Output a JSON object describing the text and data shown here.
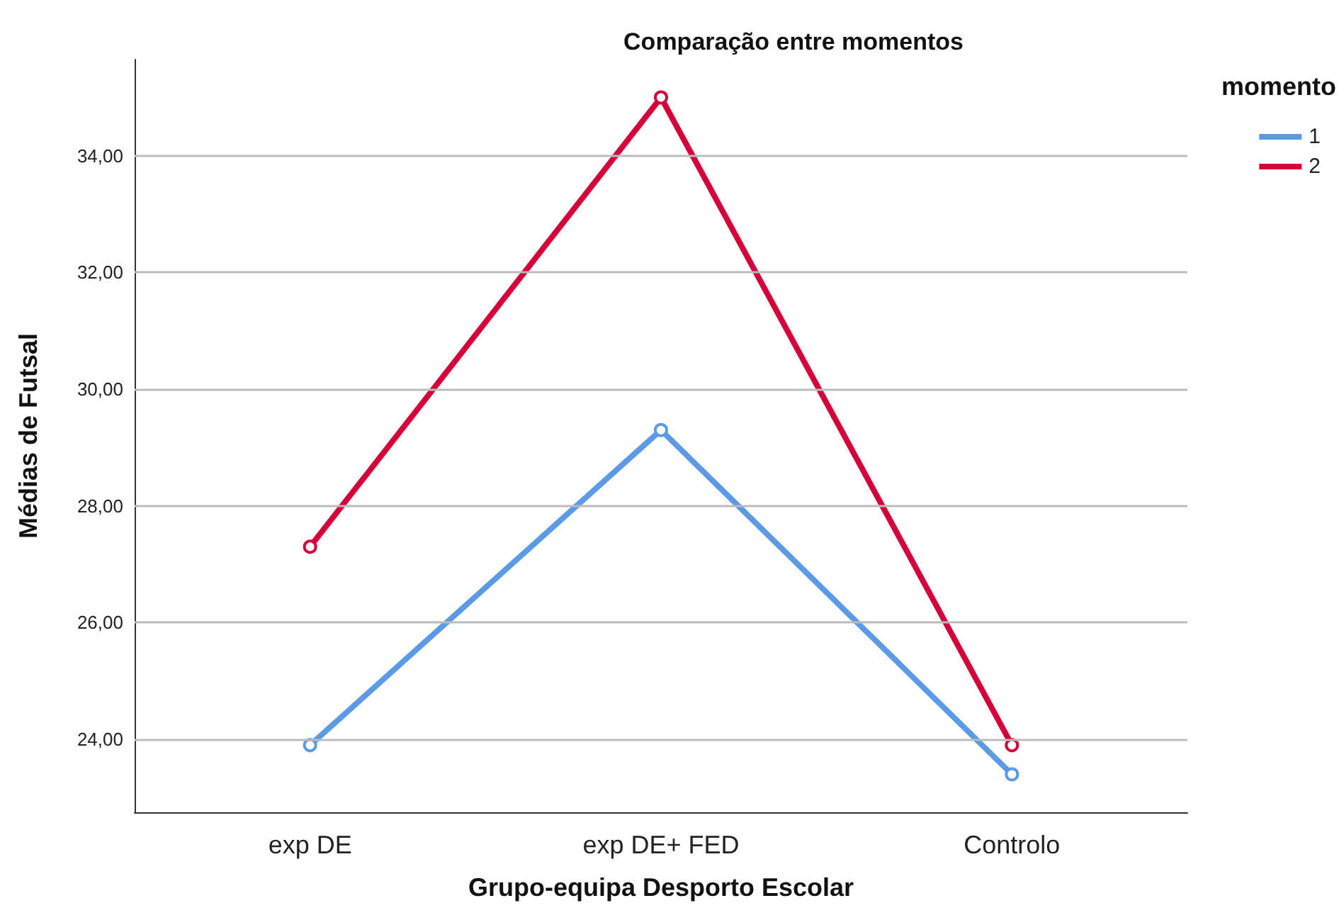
{
  "chart_data": {
    "type": "line",
    "title": "Comparação entre momentos",
    "xlabel": "Grupo-equipa Desporto Escolar",
    "ylabel": "Médias de Futsal",
    "legend_title": "momento",
    "categories": [
      "exp DE",
      "exp DE+ FED",
      "Controlo"
    ],
    "series": [
      {
        "name": "1",
        "color": "#5b9be6",
        "values": [
          23.9,
          29.3,
          23.4
        ]
      },
      {
        "name": "2",
        "color": "#d5003a",
        "values": [
          27.3,
          35.0,
          23.9
        ]
      }
    ],
    "ylim": [
      22.75,
      35.65
    ],
    "yticks": [
      {
        "value": 24,
        "label": "24,00"
      },
      {
        "value": 26,
        "label": "26,00"
      },
      {
        "value": 28,
        "label": "28,00"
      },
      {
        "value": 30,
        "label": "30,00"
      },
      {
        "value": 32,
        "label": "32,00"
      },
      {
        "value": 34,
        "label": "34,00"
      }
    ],
    "grid": "y",
    "legend": "top right",
    "marker": "circle",
    "line_style": "solid"
  }
}
